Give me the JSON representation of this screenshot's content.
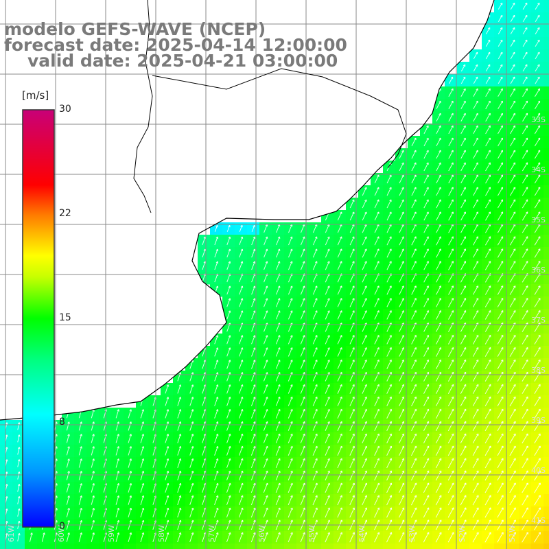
{
  "title": {
    "model": "modelo GEFS-WAVE (NCEP)",
    "forecast": "forecast date: 2025-04-14 12:00:00",
    "valid": "valid date: 2025-04-21 03:00:00"
  },
  "colorbar": {
    "unit": "[m/s]",
    "ticks": [
      "30",
      "22",
      "15",
      "8",
      "0"
    ],
    "tick_values": [
      30,
      22,
      15,
      8,
      0
    ],
    "min": 0,
    "max": 30
  },
  "chart_data": {
    "type": "heatmap",
    "variable": "wind speed",
    "unit": "m/s",
    "lon_labels": [
      "61W",
      "60W",
      "59W",
      "58W",
      "57W",
      "56W",
      "55W",
      "54W",
      "53W",
      "52W",
      "51W"
    ],
    "lat_labels": [
      "33S",
      "34S",
      "35S",
      "36S",
      "37S",
      "38S",
      "39S",
      "40S",
      "41S"
    ],
    "value_range": [
      0,
      30
    ],
    "wind_direction": "toward north-northeast",
    "grid": true
  },
  "colors": {
    "land": "#ffffff",
    "coast": "#000000",
    "grid": "#8a8a8a",
    "arrow": "#ffffff",
    "title": "#7a7a7a"
  }
}
